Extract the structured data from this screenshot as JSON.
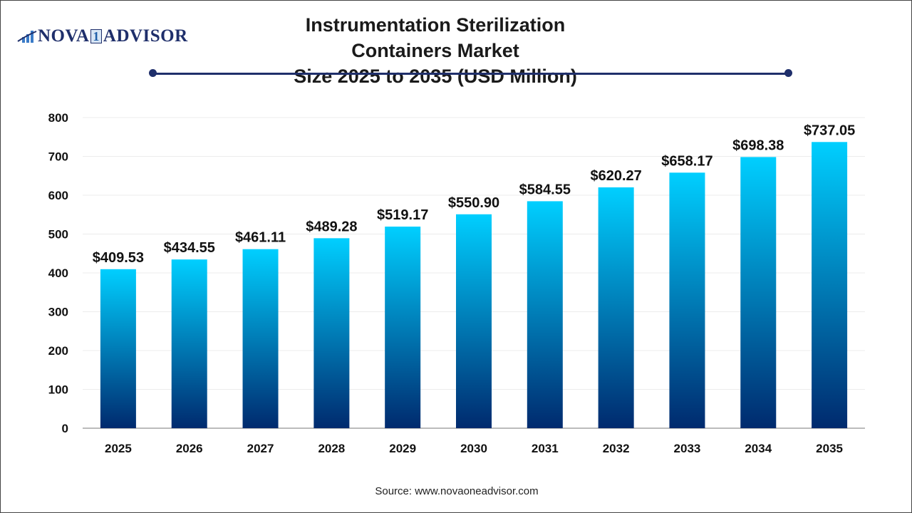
{
  "logo": {
    "text_a": "NOVA",
    "text_one": "1",
    "text_b": "ADVISOR"
  },
  "title_line1": "Instrumentation Sterilization Containers Market",
  "title_line2": "Size 2025 to 2035 (USD Million)",
  "source": "Source: www.novaoneadvisor.com",
  "colors": {
    "bar_top": "#00cfff",
    "bar_bottom": "#002a6e",
    "accent": "#1f2f6b"
  },
  "chart_data": {
    "type": "bar",
    "title": "Instrumentation Sterilization Containers Market Size 2025 to 2035 (USD Million)",
    "categories": [
      "2025",
      "2026",
      "2027",
      "2028",
      "2029",
      "2030",
      "2031",
      "2032",
      "2033",
      "2034",
      "2035"
    ],
    "values": [
      409.53,
      434.55,
      461.11,
      489.28,
      519.17,
      550.9,
      584.55,
      620.27,
      658.17,
      698.38,
      737.05
    ],
    "data_labels": [
      "$409.53",
      "$434.55",
      "$461.11",
      "$489.28",
      "$519.17",
      "$550.90",
      "$584.55",
      "$620.27",
      "$658.17",
      "$698.38",
      "$737.05"
    ],
    "yticks": [
      0,
      100,
      200,
      300,
      400,
      500,
      600,
      700,
      800
    ],
    "ylim": [
      0,
      800
    ],
    "grid": true,
    "xlabel": "",
    "ylabel": ""
  }
}
